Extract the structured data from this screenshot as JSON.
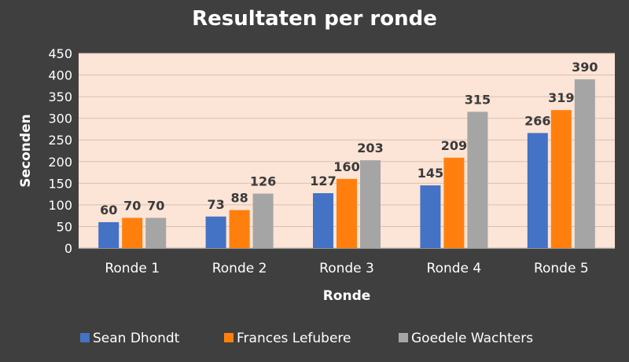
{
  "chart_data": {
    "type": "bar",
    "title": "Resultaten per ronde",
    "xlabel": "Ronde",
    "ylabel": "Seconden",
    "categories": [
      "Ronde 1",
      "Ronde 2",
      "Ronde 3",
      "Ronde 4",
      "Ronde 5"
    ],
    "series": [
      {
        "name": "Sean Dhondt",
        "values": [
          60,
          73,
          127,
          145,
          266
        ],
        "color": "#4472c4"
      },
      {
        "name": "Frances Lefubere",
        "values": [
          70,
          88,
          160,
          209,
          319
        ],
        "color": "#ff7f0e"
      },
      {
        "name": "Goedele Wachters",
        "values": [
          70,
          126,
          203,
          315,
          390
        ],
        "color": "#a5a5a5"
      }
    ],
    "ylim": [
      0,
      450
    ],
    "yticks": [
      0,
      50,
      100,
      150,
      200,
      250,
      300,
      350,
      400,
      450
    ],
    "data_labels": true,
    "grid": true,
    "legend_position": "bottom",
    "colors": {
      "background": "#3f3f3f",
      "plot_area": "#fce4d6",
      "grid": "#d9bfb0",
      "text": "#ffffff",
      "data_label": "#3a3a3a"
    }
  }
}
